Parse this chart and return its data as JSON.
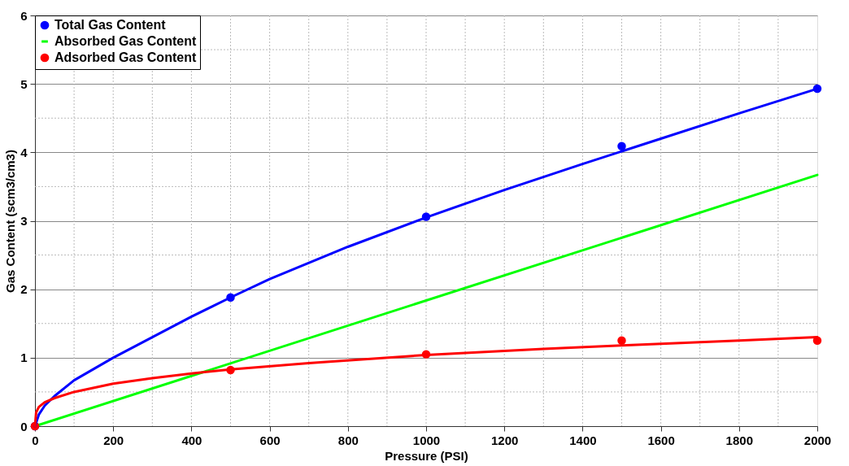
{
  "chart_data": {
    "type": "line",
    "xlabel": "Pressure (PSI)",
    "ylabel": "Gas Content (scm3/cm3)",
    "xlim": [
      0,
      2000
    ],
    "ylim": [
      0,
      6
    ],
    "xticks": [
      0,
      200,
      400,
      600,
      800,
      1000,
      1200,
      1400,
      1600,
      1800,
      2000
    ],
    "yticks": [
      0,
      1,
      2,
      3,
      4,
      5,
      6
    ],
    "grid": true,
    "legend": "top left",
    "series": [
      {
        "name": "Total Gas Content",
        "type": "scatter",
        "marker": "circle",
        "color": "#0000ff",
        "x": [
          0,
          500,
          1000,
          1500,
          2000
        ],
        "values": [
          0,
          1.88,
          3.06,
          4.09,
          4.93
        ]
      },
      {
        "name": "Absorbed Gas Content",
        "type": "line",
        "marker": "none",
        "color": "#00ff00",
        "x": [
          0,
          2000
        ],
        "values": [
          0,
          3.67
        ]
      },
      {
        "name": "Adsorbed Gas Content",
        "type": "scatter",
        "marker": "circle",
        "color": "#ff0000",
        "x": [
          0,
          500,
          1000,
          1500,
          2000
        ],
        "values": [
          0,
          0.82,
          1.05,
          1.25,
          1.25
        ]
      },
      {
        "marker": "none",
        "color": "#0000ff",
        "x": [
          0,
          10,
          25,
          50,
          100,
          200,
          300,
          400,
          500,
          600,
          800,
          1000,
          1200,
          1400,
          1600,
          1800,
          2000
        ],
        "values": [
          0,
          0.17,
          0.3,
          0.44,
          0.67,
          1.0,
          1.3,
          1.6,
          1.88,
          2.15,
          2.62,
          3.05,
          3.45,
          3.83,
          4.2,
          4.57,
          4.93
        ]
      },
      {
        "marker": "none",
        "color": "#ff0000",
        "x": [
          0,
          3,
          10,
          25,
          50,
          100,
          200,
          300,
          400,
          500,
          700,
          1000,
          1300,
          1500,
          1800,
          2000
        ],
        "values": [
          0,
          0.2,
          0.28,
          0.35,
          0.41,
          0.5,
          0.62,
          0.7,
          0.77,
          0.83,
          0.92,
          1.04,
          1.13,
          1.18,
          1.25,
          1.3
        ]
      }
    ]
  }
}
